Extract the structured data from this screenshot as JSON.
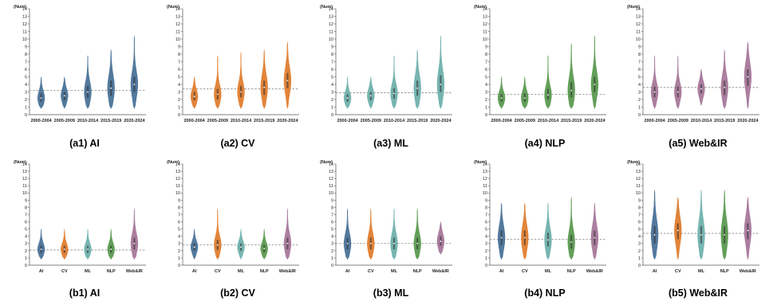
{
  "chart_data": [
    {
      "id": "a1",
      "type": "violin",
      "title": "(a1)  AI",
      "ylabel": "(Num)",
      "ylim": [
        0,
        14
      ],
      "yticks": [
        0,
        1,
        2,
        3,
        4,
        5,
        6,
        7,
        8,
        9,
        10,
        11,
        12,
        13,
        14
      ],
      "categories": [
        "2000-2004",
        "2005-2009",
        "2010-2014",
        "2015-2019",
        "2020-2024"
      ],
      "colors": [
        "#4a7298",
        "#4a7298",
        "#4a7298",
        "#4a7298",
        "#4a7298"
      ],
      "reference_line": 3.2,
      "distributions": [
        {
          "min": 0.8,
          "max": 5.0,
          "median": 2.2,
          "q1": 1.7,
          "q3": 2.8
        },
        {
          "min": 0.8,
          "max": 5.0,
          "median": 2.5,
          "q1": 1.9,
          "q3": 3.0
        },
        {
          "min": 0.8,
          "max": 7.8,
          "median": 3.0,
          "q1": 2.2,
          "q3": 3.8
        },
        {
          "min": 0.8,
          "max": 8.6,
          "median": 3.5,
          "q1": 2.5,
          "q3": 4.5
        },
        {
          "min": 0.8,
          "max": 10.4,
          "median": 4.0,
          "q1": 3.0,
          "q3": 5.0
        }
      ]
    },
    {
      "id": "a2",
      "type": "violin",
      "title": "(a2)  CV",
      "ylabel": "(Num)",
      "ylim": [
        0,
        14
      ],
      "yticks": [
        0,
        1,
        2,
        3,
        4,
        5,
        6,
        7,
        8,
        9,
        10,
        11,
        12,
        13,
        14
      ],
      "categories": [
        "2000-2004",
        "2005-2009",
        "2010-2014",
        "2015-2019",
        "2020-2024"
      ],
      "colors": [
        "#e07d2e",
        "#e07d2e",
        "#e07d2e",
        "#e07d2e",
        "#e07d2e"
      ],
      "reference_line": 3.4,
      "distributions": [
        {
          "min": 0.8,
          "max": 5.0,
          "median": 2.4,
          "q1": 1.9,
          "q3": 3.0
        },
        {
          "min": 0.8,
          "max": 7.8,
          "median": 2.7,
          "q1": 2.0,
          "q3": 3.4
        },
        {
          "min": 0.8,
          "max": 8.2,
          "median": 3.0,
          "q1": 2.3,
          "q3": 3.8
        },
        {
          "min": 0.8,
          "max": 8.6,
          "median": 3.6,
          "q1": 2.6,
          "q3": 4.5
        },
        {
          "min": 0.8,
          "max": 9.6,
          "median": 4.5,
          "q1": 3.5,
          "q3": 5.5
        }
      ]
    },
    {
      "id": "a3",
      "type": "violin",
      "title": "(a3)  ML",
      "ylabel": "(Num)",
      "ylim": [
        0,
        14
      ],
      "yticks": [
        0,
        1,
        2,
        3,
        4,
        5,
        6,
        7,
        8,
        9,
        10,
        11,
        12,
        13,
        14
      ],
      "categories": [
        "2000-2004",
        "2005-2009",
        "2010-2014",
        "2015-2019",
        "2020-2024"
      ],
      "colors": [
        "#6fb1ad",
        "#6fb1ad",
        "#6fb1ad",
        "#6fb1ad",
        "#6fb1ad"
      ],
      "reference_line": 2.9,
      "distributions": [
        {
          "min": 0.8,
          "max": 5.0,
          "median": 2.2,
          "q1": 1.7,
          "q3": 2.7
        },
        {
          "min": 0.8,
          "max": 5.0,
          "median": 2.5,
          "q1": 1.9,
          "q3": 3.0
        },
        {
          "min": 0.8,
          "max": 7.8,
          "median": 2.8,
          "q1": 2.1,
          "q3": 3.5
        },
        {
          "min": 0.8,
          "max": 8.6,
          "median": 3.5,
          "q1": 2.5,
          "q3": 4.5
        },
        {
          "min": 0.8,
          "max": 10.4,
          "median": 4.0,
          "q1": 3.0,
          "q3": 5.2
        }
      ]
    },
    {
      "id": "a4",
      "type": "violin",
      "title": "(a4)  NLP",
      "ylabel": "(Num)",
      "ylim": [
        0,
        14
      ],
      "yticks": [
        0,
        1,
        2,
        3,
        4,
        5,
        6,
        7,
        8,
        9,
        10,
        11,
        12,
        13,
        14
      ],
      "categories": [
        "2000-2004",
        "2005-2009",
        "2010-2014",
        "2015-2019",
        "2020-2024"
      ],
      "colors": [
        "#5b9a50",
        "#5b9a50",
        "#5b9a50",
        "#5b9a50",
        "#5b9a50"
      ],
      "reference_line": 2.7,
      "distributions": [
        {
          "min": 0.8,
          "max": 5.0,
          "median": 2.2,
          "q1": 1.7,
          "q3": 2.7
        },
        {
          "min": 0.8,
          "max": 5.0,
          "median": 2.2,
          "q1": 1.7,
          "q3": 2.8
        },
        {
          "min": 0.8,
          "max": 7.8,
          "median": 2.6,
          "q1": 2.0,
          "q3": 3.4
        },
        {
          "min": 0.8,
          "max": 9.4,
          "median": 3.2,
          "q1": 2.3,
          "q3": 4.3
        },
        {
          "min": 0.8,
          "max": 10.4,
          "median": 4.0,
          "q1": 3.0,
          "q3": 5.0
        }
      ]
    },
    {
      "id": "a5",
      "type": "violin",
      "title": "(a5)  Web&IR",
      "ylabel": "(Num)",
      "ylim": [
        0,
        14
      ],
      "yticks": [
        0,
        1,
        2,
        3,
        4,
        5,
        6,
        7,
        8,
        9,
        10,
        11,
        12,
        13,
        14
      ],
      "categories": [
        "2000-2004",
        "2005-2009",
        "2010-2014",
        "2015-2019",
        "2020-2024"
      ],
      "colors": [
        "#a7779a",
        "#a7779a",
        "#a7779a",
        "#a7779a",
        "#a7779a"
      ],
      "reference_line": 3.6,
      "distributions": [
        {
          "min": 0.8,
          "max": 7.8,
          "median": 3.0,
          "q1": 2.3,
          "q3": 3.7
        },
        {
          "min": 0.8,
          "max": 7.8,
          "median": 3.0,
          "q1": 2.3,
          "q3": 3.7
        },
        {
          "min": 1.2,
          "max": 6.0,
          "median": 3.4,
          "q1": 2.8,
          "q3": 4.0
        },
        {
          "min": 0.8,
          "max": 8.6,
          "median": 3.6,
          "q1": 2.6,
          "q3": 4.5
        },
        {
          "min": 0.8,
          "max": 9.6,
          "median": 5.0,
          "q1": 3.8,
          "q3": 6.0
        }
      ]
    },
    {
      "id": "b1",
      "type": "violin",
      "title": "(b1)  AI",
      "ylabel": "(Num)",
      "ylim": [
        0,
        14
      ],
      "yticks": [
        0,
        1,
        2,
        3,
        4,
        5,
        6,
        7,
        8,
        9,
        10,
        11,
        12,
        13,
        14
      ],
      "categories": [
        "AI",
        "CV",
        "ML",
        "NLP",
        "Web&IR"
      ],
      "colors": [
        "#4a7298",
        "#e07d2e",
        "#6fb1ad",
        "#5b9a50",
        "#a7779a"
      ],
      "reference_line": 2.1,
      "distributions": [
        {
          "min": 0.8,
          "max": 5.0,
          "median": 2.2,
          "q1": 1.7,
          "q3": 2.7
        },
        {
          "min": 0.8,
          "max": 5.0,
          "median": 2.2,
          "q1": 1.7,
          "q3": 2.7
        },
        {
          "min": 0.8,
          "max": 5.0,
          "median": 2.2,
          "q1": 1.7,
          "q3": 2.7
        },
        {
          "min": 0.8,
          "max": 5.0,
          "median": 2.2,
          "q1": 1.7,
          "q3": 2.7
        },
        {
          "min": 0.8,
          "max": 7.8,
          "median": 3.0,
          "q1": 2.2,
          "q3": 3.8
        }
      ]
    },
    {
      "id": "b2",
      "type": "violin",
      "title": "(b2)  CV",
      "ylabel": "(Num)",
      "ylim": [
        0,
        14
      ],
      "yticks": [
        0,
        1,
        2,
        3,
        4,
        5,
        6,
        7,
        8,
        9,
        10,
        11,
        12,
        13,
        14
      ],
      "categories": [
        "AI",
        "CV",
        "ML",
        "NLP",
        "Web&IR"
      ],
      "colors": [
        "#4a7298",
        "#e07d2e",
        "#6fb1ad",
        "#5b9a50",
        "#a7779a"
      ],
      "reference_line": 2.8,
      "distributions": [
        {
          "min": 0.8,
          "max": 5.0,
          "median": 2.5,
          "q1": 2.0,
          "q3": 3.0
        },
        {
          "min": 0.8,
          "max": 7.8,
          "median": 2.8,
          "q1": 2.1,
          "q3": 3.5
        },
        {
          "min": 0.8,
          "max": 5.0,
          "median": 2.5,
          "q1": 2.0,
          "q3": 3.0
        },
        {
          "min": 0.8,
          "max": 5.0,
          "median": 2.3,
          "q1": 1.8,
          "q3": 2.8
        },
        {
          "min": 0.8,
          "max": 7.8,
          "median": 3.0,
          "q1": 2.2,
          "q3": 3.8
        }
      ]
    },
    {
      "id": "b3",
      "type": "violin",
      "title": "(b3)  ML",
      "ylabel": "(Num)",
      "ylim": [
        0,
        14
      ],
      "yticks": [
        0,
        1,
        2,
        3,
        4,
        5,
        6,
        7,
        8,
        9,
        10,
        11,
        12,
        13,
        14
      ],
      "categories": [
        "AI",
        "CV",
        "ML",
        "NLP",
        "Web&IR"
      ],
      "colors": [
        "#4a7298",
        "#e07d2e",
        "#6fb1ad",
        "#5b9a50",
        "#a7779a"
      ],
      "reference_line": 3.0,
      "distributions": [
        {
          "min": 0.8,
          "max": 7.8,
          "median": 3.0,
          "q1": 2.2,
          "q3": 3.8
        },
        {
          "min": 0.8,
          "max": 7.8,
          "median": 3.0,
          "q1": 2.2,
          "q3": 3.8
        },
        {
          "min": 0.8,
          "max": 7.8,
          "median": 3.0,
          "q1": 2.2,
          "q3": 3.8
        },
        {
          "min": 0.8,
          "max": 7.8,
          "median": 3.0,
          "q1": 2.2,
          "q3": 3.8
        },
        {
          "min": 1.5,
          "max": 6.0,
          "median": 3.3,
          "q1": 2.7,
          "q3": 4.0
        }
      ]
    },
    {
      "id": "b4",
      "type": "violin",
      "title": "(b4)  NLP",
      "ylabel": "(Num)",
      "ylim": [
        0,
        14
      ],
      "yticks": [
        0,
        1,
        2,
        3,
        4,
        5,
        6,
        7,
        8,
        9,
        10,
        11,
        12,
        13,
        14
      ],
      "categories": [
        "AI",
        "CV",
        "ML",
        "NLP",
        "Web&IR"
      ],
      "colors": [
        "#4a7298",
        "#e07d2e",
        "#6fb1ad",
        "#5b9a50",
        "#a7779a"
      ],
      "reference_line": 3.6,
      "distributions": [
        {
          "min": 0.8,
          "max": 8.6,
          "median": 3.8,
          "q1": 2.8,
          "q3": 4.8
        },
        {
          "min": 0.8,
          "max": 8.6,
          "median": 3.8,
          "q1": 2.8,
          "q3": 4.8
        },
        {
          "min": 0.8,
          "max": 8.6,
          "median": 3.5,
          "q1": 2.6,
          "q3": 4.5
        },
        {
          "min": 0.8,
          "max": 9.4,
          "median": 3.2,
          "q1": 2.3,
          "q3": 4.2
        },
        {
          "min": 0.8,
          "max": 8.6,
          "median": 3.8,
          "q1": 2.8,
          "q3": 4.8
        }
      ]
    },
    {
      "id": "b5",
      "type": "violin",
      "title": "(b5)  Web&IR",
      "ylabel": "(Num)",
      "ylim": [
        0,
        14
      ],
      "yticks": [
        0,
        1,
        2,
        3,
        4,
        5,
        6,
        7,
        8,
        9,
        10,
        11,
        12,
        13,
        14
      ],
      "categories": [
        "AI",
        "CV",
        "ML",
        "NLP",
        "Web&IR"
      ],
      "colors": [
        "#4a7298",
        "#e07d2e",
        "#6fb1ad",
        "#5b9a50",
        "#a7779a"
      ],
      "reference_line": 4.4,
      "distributions": [
        {
          "min": 0.8,
          "max": 10.4,
          "median": 4.2,
          "q1": 3.0,
          "q3": 5.4
        },
        {
          "min": 0.8,
          "max": 9.4,
          "median": 4.8,
          "q1": 3.6,
          "q3": 5.8
        },
        {
          "min": 0.8,
          "max": 10.4,
          "median": 4.2,
          "q1": 3.0,
          "q3": 5.4
        },
        {
          "min": 0.8,
          "max": 10.4,
          "median": 4.2,
          "q1": 3.0,
          "q3": 5.4
        },
        {
          "min": 0.8,
          "max": 9.4,
          "median": 4.8,
          "q1": 3.6,
          "q3": 5.8
        }
      ]
    }
  ]
}
